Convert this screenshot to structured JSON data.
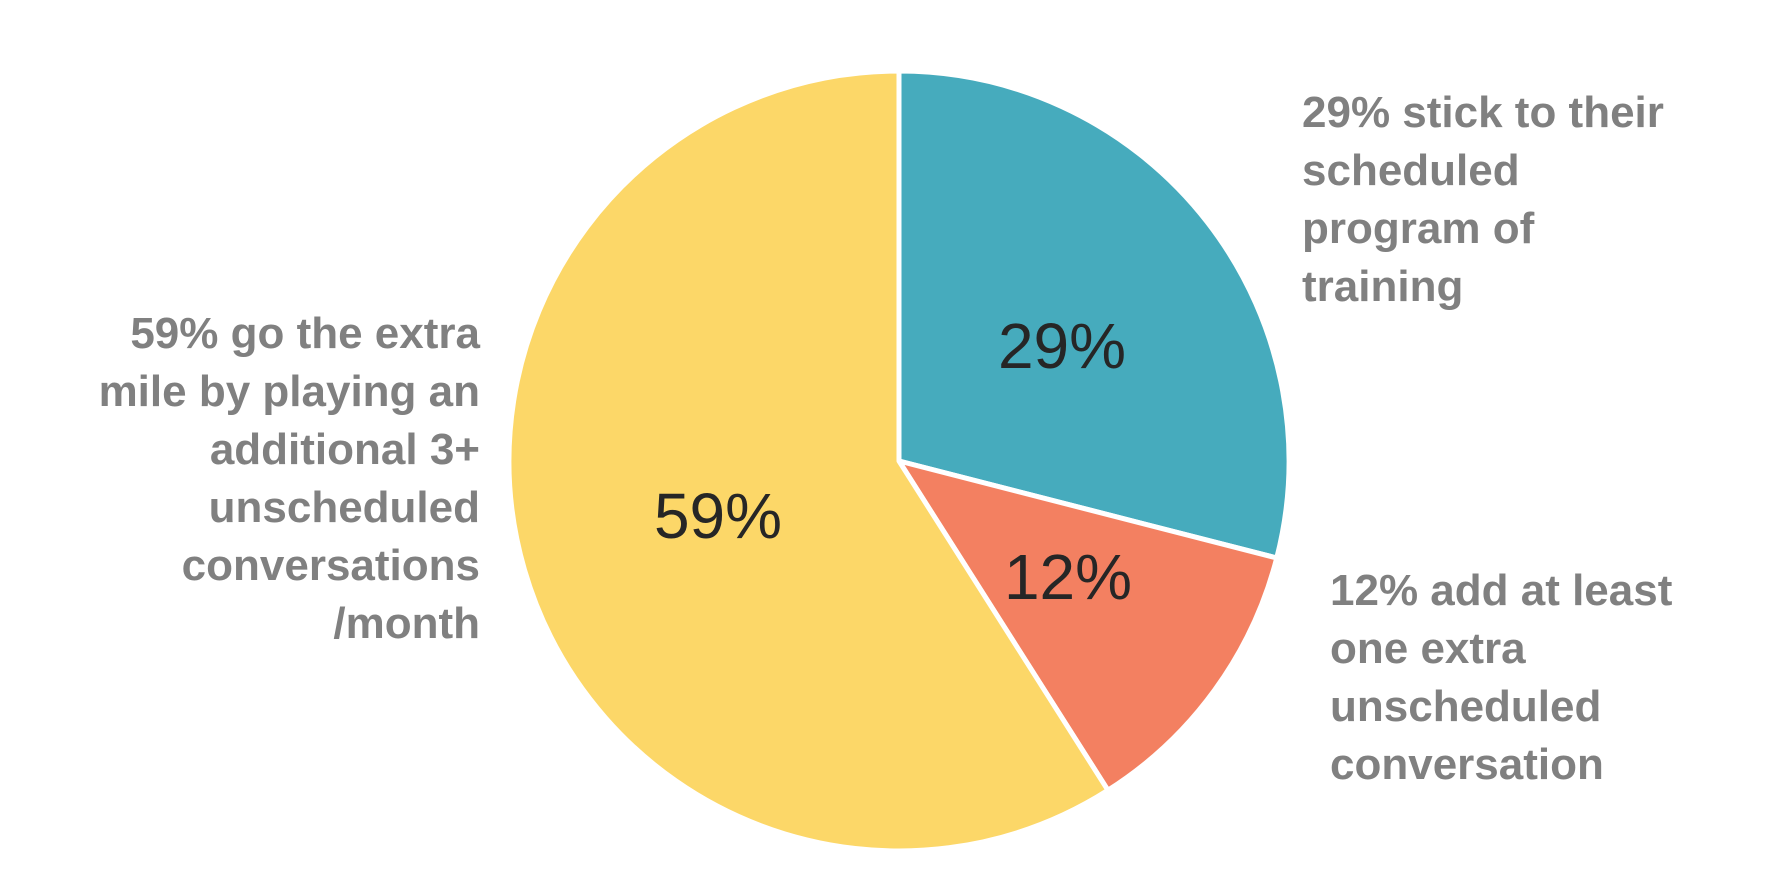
{
  "chart_data": {
    "type": "pie",
    "slices": [
      {
        "value": 29,
        "data_label": "29%",
        "callout": "29% stick to their\nscheduled\nprogram of\ntraining",
        "color": "#46abbd"
      },
      {
        "value": 12,
        "data_label": "12%",
        "callout": "12% add at least\none extra\nunscheduled\nconversation",
        "color": "#f38061"
      },
      {
        "value": 59,
        "data_label": "59%",
        "callout": "59% go the extra\nmile by playing an\nadditional 3+\nunscheduled\nconversations\n/month",
        "color": "#fcd768"
      }
    ],
    "start_angle": "12 o'clock",
    "direction": "clockwise",
    "legend": "none"
  }
}
